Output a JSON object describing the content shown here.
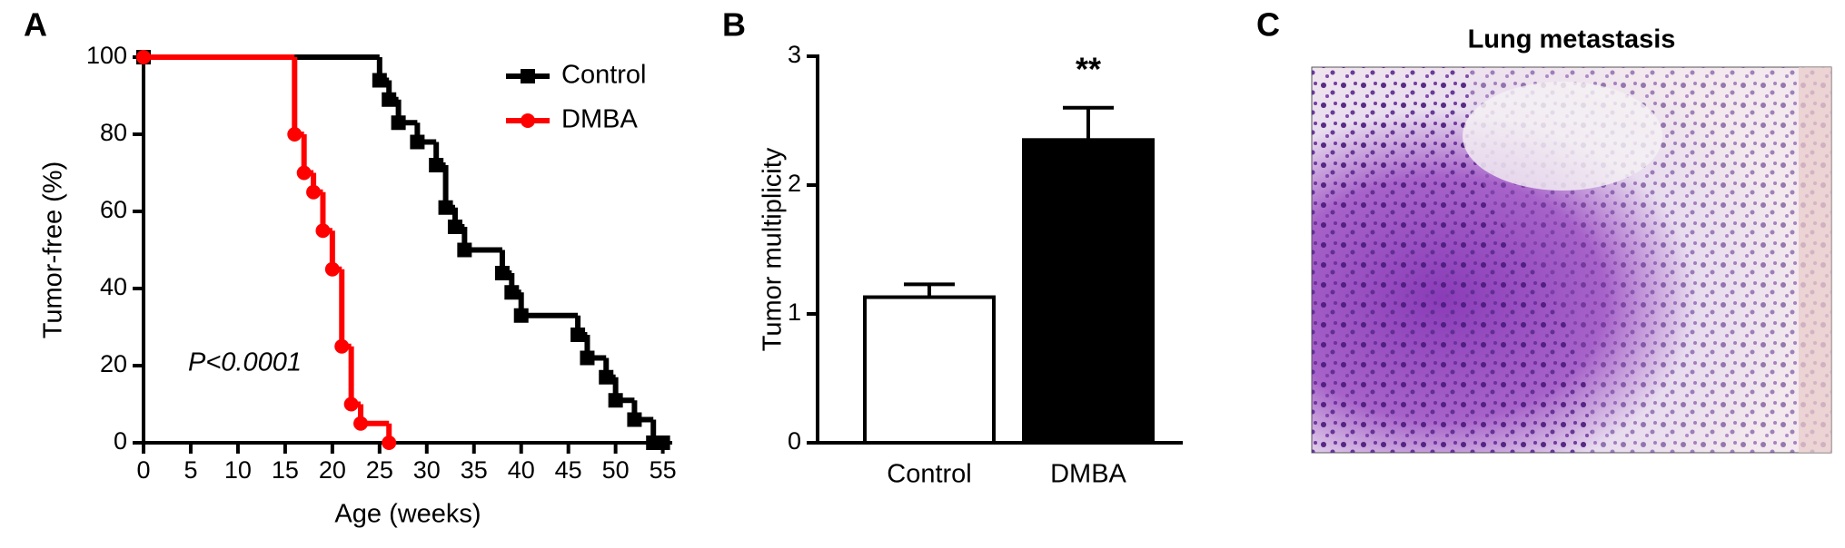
{
  "chart_data": [
    {
      "type": "line",
      "drawstyle": "steps-post",
      "panel_label": "A",
      "xlabel": "Age (weeks)",
      "ylabel": "Tumor-free (%)",
      "annotation": "P<0.0001",
      "xlim": [
        0,
        56
      ],
      "ylim": [
        0,
        100
      ],
      "xticks": [
        0,
        5,
        10,
        15,
        20,
        25,
        30,
        35,
        40,
        45,
        50,
        55
      ],
      "yticks": [
        0,
        20,
        40,
        60,
        80,
        100
      ],
      "legend": "upper right",
      "series": [
        {
          "name": "Control",
          "color": "#000000",
          "marker": "square",
          "x": [
            0,
            25,
            26,
            27,
            29,
            31,
            32,
            33,
            34,
            38,
            39,
            40,
            46,
            47,
            49,
            50,
            52,
            54,
            55
          ],
          "values": [
            100,
            94,
            89,
            83,
            78,
            72,
            61,
            56,
            50,
            44,
            39,
            33,
            28,
            22,
            17,
            11,
            6,
            0,
            0
          ]
        },
        {
          "name": "DMBA",
          "color": "#ff0000",
          "marker": "circle",
          "x": [
            0,
            16,
            17,
            18,
            19,
            20,
            21,
            22,
            23,
            26
          ],
          "values": [
            100,
            80,
            70,
            65,
            55,
            45,
            25,
            10,
            5,
            0
          ]
        }
      ]
    },
    {
      "type": "bar",
      "panel_label": "B",
      "ylabel": "Tumor multiplicity",
      "categories": [
        "Control",
        "DMBA"
      ],
      "values": [
        1.13,
        2.35
      ],
      "errors": [
        0.1,
        0.25
      ],
      "colors": [
        "#ffffff",
        "#000000"
      ],
      "annotations": [
        null,
        "**"
      ],
      "ylim": [
        0,
        3
      ],
      "yticks": [
        0,
        1,
        2,
        3
      ]
    },
    {
      "type": "image",
      "panel_label": "C",
      "title": "Lung metastasis"
    }
  ]
}
